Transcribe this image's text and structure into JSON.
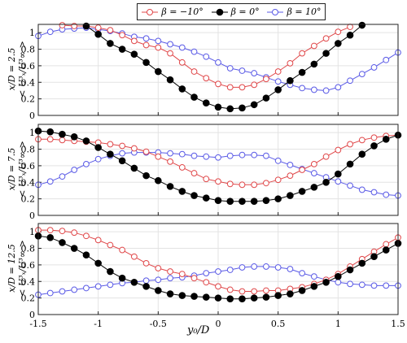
{
  "legend": [
    {
      "label": "β = −10°",
      "color": "#e0484a",
      "filled": false
    },
    {
      "label": "β = 0°",
      "color": "#000000",
      "filled": true
    },
    {
      "label": "β = 10°",
      "color": "#5a5ae6",
      "filled": false
    }
  ],
  "xlabel": "y₀/D",
  "chart_data": [
    {
      "type": "line",
      "ylabel_top": "x/D = 2.5",
      "ylabel_bottom": "< U³ₓ/U³∞ >",
      "xlim": [
        -1.5,
        1.5
      ],
      "ylim": [
        0,
        1.1
      ],
      "xticks": [
        "-1.5",
        "-1",
        "-0.5",
        "0",
        "0.5",
        "1",
        "1.5"
      ],
      "yticks": [
        "0",
        "0.2",
        "0.4",
        "0.6",
        "0.8",
        "1"
      ],
      "grid": true,
      "series": [
        {
          "name": "β = −10°",
          "x": [
            -1.3,
            -1.2,
            -1.1,
            -1.0,
            -0.9,
            -0.8,
            -0.7,
            -0.6,
            -0.5,
            -0.4,
            -0.3,
            -0.2,
            -0.1,
            0.0,
            0.1,
            0.2,
            0.3,
            0.4,
            0.5,
            0.6,
            0.7,
            0.8,
            0.9,
            1.0,
            1.1
          ],
          "y": [
            1.09,
            1.08,
            1.08,
            1.06,
            1.03,
            0.97,
            0.9,
            0.85,
            0.82,
            0.75,
            0.64,
            0.53,
            0.45,
            0.38,
            0.34,
            0.34,
            0.37,
            0.44,
            0.53,
            0.63,
            0.75,
            0.84,
            0.93,
            1.01,
            1.07
          ]
        },
        {
          "name": "β = 0°",
          "x": [
            -1.1,
            -1.0,
            -0.9,
            -0.8,
            -0.7,
            -0.6,
            -0.5,
            -0.4,
            -0.3,
            -0.2,
            -0.1,
            0.0,
            0.1,
            0.2,
            0.3,
            0.4,
            0.5,
            0.6,
            0.7,
            0.8,
            0.9,
            1.0,
            1.1,
            1.2
          ],
          "y": [
            1.08,
            0.98,
            0.87,
            0.8,
            0.74,
            0.64,
            0.53,
            0.43,
            0.32,
            0.22,
            0.15,
            0.1,
            0.08,
            0.09,
            0.13,
            0.21,
            0.31,
            0.42,
            0.52,
            0.62,
            0.75,
            0.87,
            0.97,
            1.09
          ]
        },
        {
          "name": "β = 10°",
          "x": [
            -1.5,
            -1.4,
            -1.3,
            -1.2,
            -1.1,
            -1.0,
            -0.9,
            -0.8,
            -0.7,
            -0.6,
            -0.5,
            -0.4,
            -0.3,
            -0.2,
            -0.1,
            0.0,
            0.1,
            0.2,
            0.3,
            0.4,
            0.5,
            0.6,
            0.7,
            0.8,
            0.9,
            1.0,
            1.1,
            1.2,
            1.3,
            1.4,
            1.5
          ],
          "y": [
            0.96,
            1.01,
            1.04,
            1.05,
            1.06,
            1.04,
            1.02,
            0.99,
            0.95,
            0.93,
            0.9,
            0.86,
            0.82,
            0.77,
            0.71,
            0.64,
            0.57,
            0.54,
            0.51,
            0.46,
            0.41,
            0.37,
            0.33,
            0.31,
            0.3,
            0.34,
            0.42,
            0.5,
            0.58,
            0.67,
            0.76
          ]
        }
      ]
    },
    {
      "type": "line",
      "ylabel_top": "x/D = 7.5",
      "ylabel_bottom": "< U³ₓ/U³∞ >",
      "xlim": [
        -1.5,
        1.5
      ],
      "ylim": [
        0,
        1.1
      ],
      "xticks": [
        "-1.5",
        "-1",
        "-0.5",
        "0",
        "0.5",
        "1",
        "1.5"
      ],
      "yticks": [
        "0",
        "0.2",
        "0.4",
        "0.6",
        "0.8",
        "1"
      ],
      "grid": true,
      "series": [
        {
          "name": "β = −10°",
          "x": [
            -1.5,
            -1.4,
            -1.3,
            -1.2,
            -1.1,
            -1.0,
            -0.9,
            -0.8,
            -0.7,
            -0.6,
            -0.5,
            -0.4,
            -0.3,
            -0.2,
            -0.1,
            0.0,
            0.1,
            0.2,
            0.3,
            0.4,
            0.5,
            0.6,
            0.7,
            0.8,
            0.9,
            1.0,
            1.1,
            1.2,
            1.3,
            1.4,
            1.5
          ],
          "y": [
            0.92,
            0.92,
            0.91,
            0.9,
            0.89,
            0.88,
            0.86,
            0.84,
            0.81,
            0.77,
            0.71,
            0.65,
            0.58,
            0.51,
            0.44,
            0.41,
            0.38,
            0.37,
            0.37,
            0.39,
            0.43,
            0.48,
            0.55,
            0.62,
            0.71,
            0.79,
            0.86,
            0.91,
            0.94,
            0.96,
            0.97
          ]
        },
        {
          "name": "β = 0°",
          "x": [
            -1.5,
            -1.4,
            -1.3,
            -1.2,
            -1.1,
            -1.0,
            -0.9,
            -0.8,
            -0.7,
            -0.6,
            -0.5,
            -0.4,
            -0.3,
            -0.2,
            -0.1,
            0.0,
            0.1,
            0.2,
            0.3,
            0.4,
            0.5,
            0.6,
            0.7,
            0.8,
            0.9,
            1.0,
            1.1,
            1.2,
            1.3,
            1.4,
            1.5
          ],
          "y": [
            1.02,
            1.01,
            0.98,
            0.95,
            0.9,
            0.82,
            0.74,
            0.66,
            0.57,
            0.48,
            0.42,
            0.35,
            0.29,
            0.24,
            0.21,
            0.18,
            0.17,
            0.17,
            0.17,
            0.18,
            0.2,
            0.24,
            0.29,
            0.34,
            0.4,
            0.5,
            0.62,
            0.74,
            0.84,
            0.92,
            0.97
          ]
        },
        {
          "name": "β = 10°",
          "x": [
            -1.5,
            -1.4,
            -1.3,
            -1.2,
            -1.1,
            -1.0,
            -0.9,
            -0.8,
            -0.7,
            -0.6,
            -0.5,
            -0.4,
            -0.3,
            -0.2,
            -0.1,
            0.0,
            0.1,
            0.2,
            0.3,
            0.4,
            0.5,
            0.6,
            0.7,
            0.8,
            0.9,
            1.0,
            1.1,
            1.2,
            1.3,
            1.4,
            1.5
          ],
          "y": [
            0.37,
            0.41,
            0.47,
            0.55,
            0.62,
            0.68,
            0.72,
            0.75,
            0.76,
            0.76,
            0.76,
            0.75,
            0.74,
            0.72,
            0.71,
            0.7,
            0.72,
            0.73,
            0.73,
            0.72,
            0.66,
            0.61,
            0.56,
            0.51,
            0.46,
            0.41,
            0.36,
            0.31,
            0.28,
            0.25,
            0.24
          ]
        }
      ]
    },
    {
      "type": "line",
      "ylabel_top": "x/D = 12.5",
      "ylabel_bottom": "< U³ₓ/U³∞ >",
      "xlim": [
        -1.5,
        1.5
      ],
      "ylim": [
        0,
        1.1
      ],
      "xticks": [
        "-1.5",
        "-1",
        "-0.5",
        "0",
        "0.5",
        "1",
        "1.5"
      ],
      "yticks": [
        "0",
        "0.2",
        "0.4",
        "0.6",
        "0.8",
        "1"
      ],
      "grid": true,
      "series": [
        {
          "name": "β = −10°",
          "x": [
            -1.5,
            -1.4,
            -1.3,
            -1.2,
            -1.1,
            -1.0,
            -0.9,
            -0.8,
            -0.7,
            -0.6,
            -0.5,
            -0.4,
            -0.3,
            -0.2,
            -0.1,
            0.0,
            0.1,
            0.2,
            0.3,
            0.4,
            0.5,
            0.6,
            0.7,
            0.8,
            0.9,
            1.0,
            1.1,
            1.2,
            1.3,
            1.4,
            1.5
          ],
          "y": [
            1.02,
            1.02,
            1.01,
            0.99,
            0.95,
            0.9,
            0.84,
            0.78,
            0.7,
            0.62,
            0.56,
            0.52,
            0.49,
            0.44,
            0.39,
            0.34,
            0.3,
            0.28,
            0.28,
            0.29,
            0.29,
            0.31,
            0.33,
            0.37,
            0.42,
            0.49,
            0.58,
            0.67,
            0.76,
            0.85,
            0.93
          ]
        },
        {
          "name": "β = 0°",
          "x": [
            -1.5,
            -1.4,
            -1.3,
            -1.2,
            -1.1,
            -1.0,
            -0.9,
            -0.8,
            -0.7,
            -0.6,
            -0.5,
            -0.4,
            -0.3,
            -0.2,
            -0.1,
            0.0,
            0.1,
            0.2,
            0.3,
            0.4,
            0.5,
            0.6,
            0.7,
            0.8,
            0.9,
            1.0,
            1.1,
            1.2,
            1.3,
            1.4,
            1.5
          ],
          "y": [
            0.95,
            0.93,
            0.87,
            0.8,
            0.72,
            0.62,
            0.52,
            0.44,
            0.39,
            0.34,
            0.29,
            0.25,
            0.23,
            0.22,
            0.21,
            0.2,
            0.19,
            0.19,
            0.2,
            0.21,
            0.23,
            0.25,
            0.29,
            0.34,
            0.39,
            0.46,
            0.54,
            0.62,
            0.7,
            0.78,
            0.86
          ]
        },
        {
          "name": "β = 10°",
          "x": [
            -1.5,
            -1.4,
            -1.3,
            -1.2,
            -1.1,
            -1.0,
            -0.9,
            -0.8,
            -0.7,
            -0.6,
            -0.5,
            -0.4,
            -0.3,
            -0.2,
            -0.1,
            0.0,
            0.1,
            0.2,
            0.3,
            0.4,
            0.5,
            0.6,
            0.7,
            0.8,
            0.9,
            1.0,
            1.1,
            1.2,
            1.3,
            1.4,
            1.5
          ],
          "y": [
            0.24,
            0.26,
            0.28,
            0.3,
            0.32,
            0.34,
            0.36,
            0.38,
            0.39,
            0.41,
            0.42,
            0.44,
            0.45,
            0.47,
            0.5,
            0.52,
            0.54,
            0.57,
            0.58,
            0.58,
            0.57,
            0.55,
            0.5,
            0.46,
            0.42,
            0.39,
            0.37,
            0.36,
            0.35,
            0.35,
            0.35
          ]
        }
      ]
    }
  ]
}
